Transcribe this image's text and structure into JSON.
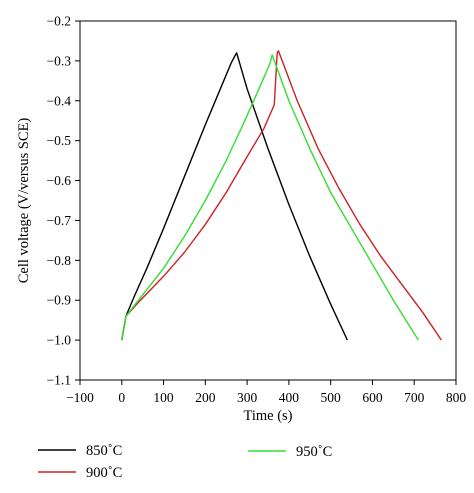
{
  "chart_data": {
    "type": "line",
    "title": "",
    "xlabel": "Time (s)",
    "ylabel": "Cell voltage (V/versus SCE)",
    "xlim": [
      -100,
      800
    ],
    "ylim": [
      -1.1,
      -0.2
    ],
    "xticks": [
      -100,
      0,
      100,
      200,
      300,
      400,
      500,
      600,
      700,
      800
    ],
    "yticks": [
      -0.2,
      -0.3,
      -0.4,
      -0.5,
      -0.6,
      -0.7,
      -0.8,
      -0.9,
      -1.0,
      -1.1
    ],
    "xtick_labels": [
      "−100",
      "0",
      "100",
      "200",
      "300",
      "400",
      "500",
      "600",
      "700",
      "800"
    ],
    "ytick_labels": [
      "−0.2",
      "−0.3",
      "−0.4",
      "−0.5",
      "−0.6",
      "−0.7",
      "−0.8",
      "−0.9",
      "−1.0",
      "−1.1"
    ],
    "grid": false,
    "legend_placement": "below",
    "series": [
      {
        "name": "850˚C",
        "color": "#000000",
        "x": [
          0,
          10,
          30,
          60,
          100,
          150,
          200,
          240,
          262,
          272,
          275,
          300,
          350,
          400,
          450,
          500,
          540
        ],
        "y": [
          -1.0,
          -0.94,
          -0.89,
          -0.82,
          -0.72,
          -0.59,
          -0.46,
          -0.36,
          -0.305,
          -0.285,
          -0.28,
          -0.37,
          -0.52,
          -0.66,
          -0.79,
          -0.91,
          -1.0
        ]
      },
      {
        "name": "900˚C",
        "color": "#cc2222",
        "x": [
          0,
          10,
          40,
          100,
          150,
          200,
          250,
          300,
          340,
          365,
          372,
          375,
          420,
          470,
          520,
          570,
          620,
          670,
          720,
          765
        ],
        "y": [
          -1.0,
          -0.94,
          -0.905,
          -0.84,
          -0.78,
          -0.71,
          -0.63,
          -0.54,
          -0.47,
          -0.41,
          -0.28,
          -0.275,
          -0.4,
          -0.52,
          -0.62,
          -0.71,
          -0.79,
          -0.86,
          -0.93,
          -1.0
        ]
      },
      {
        "name": "950˚C",
        "color": "#33dd33",
        "x": [
          0,
          10,
          40,
          100,
          150,
          200,
          250,
          290,
          320,
          345,
          355,
          360,
          400,
          450,
          500,
          550,
          600,
          650,
          710
        ],
        "y": [
          -1.0,
          -0.94,
          -0.9,
          -0.82,
          -0.74,
          -0.65,
          -0.55,
          -0.46,
          -0.39,
          -0.33,
          -0.305,
          -0.285,
          -0.4,
          -0.52,
          -0.63,
          -0.72,
          -0.81,
          -0.9,
          -1.0
        ]
      }
    ]
  }
}
